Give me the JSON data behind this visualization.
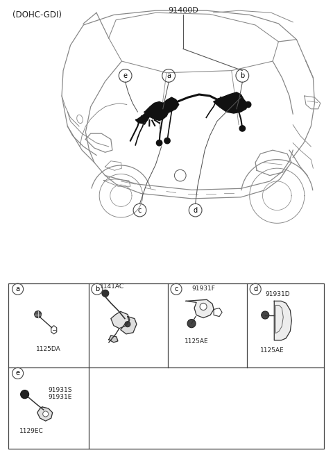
{
  "title_text": "(DOHC-GDI)",
  "main_part_label": "91400D",
  "background_color": "#ffffff",
  "line_color": "#888888",
  "dark_line": "#555555",
  "fig_width": 4.8,
  "fig_height": 6.55,
  "dpi": 100,
  "cell_a_parts": [
    "1125DA"
  ],
  "cell_b_parts": [
    "1141AC"
  ],
  "cell_c_parts": [
    "91931F",
    "1125AE"
  ],
  "cell_d_parts": [
    "91931D",
    "1125AE"
  ],
  "cell_e_parts": [
    "91931S",
    "91931E",
    "1129EC"
  ]
}
